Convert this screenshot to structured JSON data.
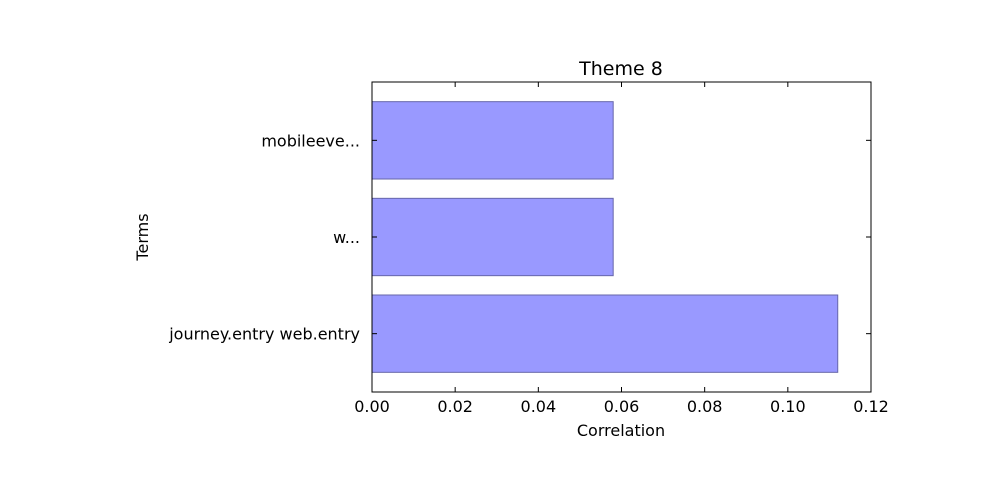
{
  "chart_data": {
    "type": "bar",
    "orientation": "horizontal",
    "title": "Theme 8",
    "xlabel": "Correlation",
    "ylabel": "Terms",
    "categories": [
      "journey.entry web.entry",
      "w...",
      "mobileeve..."
    ],
    "values": [
      0.112,
      0.058,
      0.058
    ],
    "xlim": [
      0.0,
      0.12
    ],
    "xticks": [
      "0.00",
      "0.02",
      "0.04",
      "0.06",
      "0.08",
      "0.10",
      "0.12"
    ],
    "grid": false,
    "legend": "none",
    "bar_color": "#9999ff",
    "bar_edge_color": "#6666aa"
  }
}
